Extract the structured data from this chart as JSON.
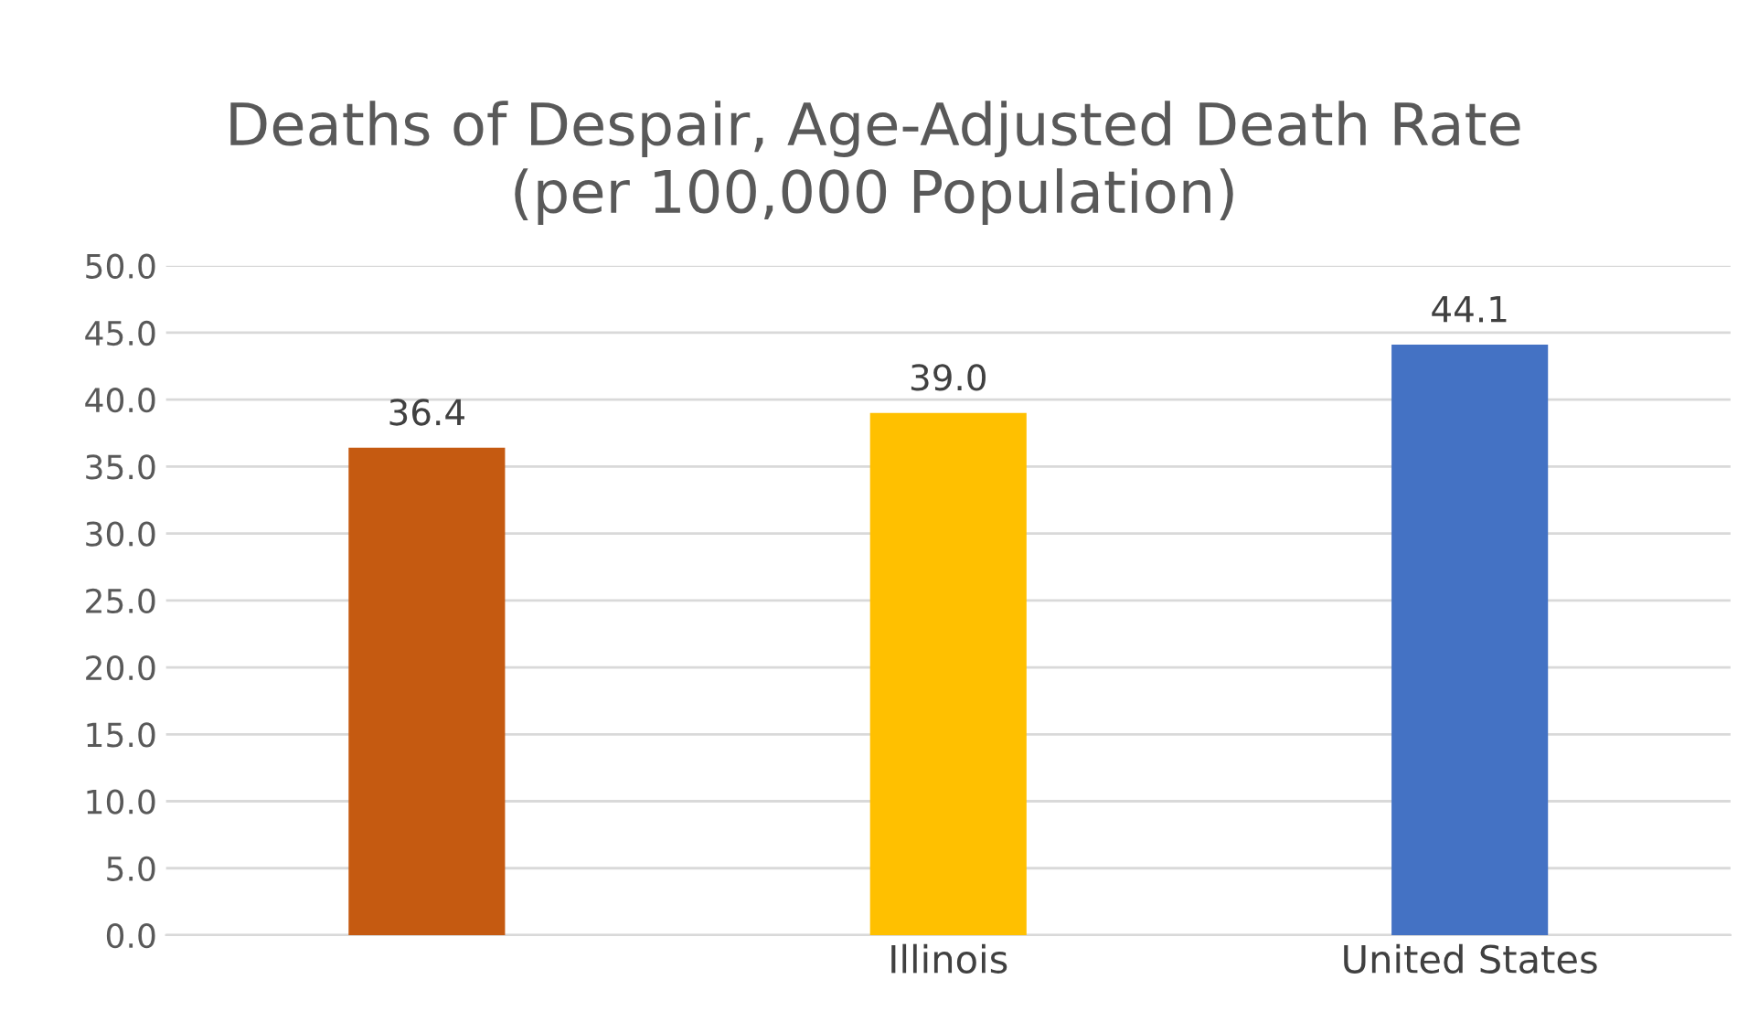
{
  "chart_data": {
    "type": "bar",
    "title": "Deaths of Despair, Age-Adjusted Death Rate\n(per 100,000 Population)",
    "categories": [
      null,
      "Illinois",
      "United States"
    ],
    "values": [
      36.4,
      39.0,
      44.1
    ],
    "colors": [
      "#c55a11",
      "#ffc000",
      "#4472c4"
    ],
    "value_labels": [
      "36.4",
      "39.0",
      "44.1"
    ],
    "ylim": [
      0,
      50
    ],
    "yticks": [
      {
        "value": 0,
        "label": "0.0"
      },
      {
        "value": 5,
        "label": "5.0"
      },
      {
        "value": 10,
        "label": "10.0"
      },
      {
        "value": 15,
        "label": "15.0"
      },
      {
        "value": 20,
        "label": "20.0"
      },
      {
        "value": 25,
        "label": "25.0"
      },
      {
        "value": 30,
        "label": "30.0"
      },
      {
        "value": 35,
        "label": "35.0"
      },
      {
        "value": 40,
        "label": "40.0"
      },
      {
        "value": 45,
        "label": "45.0"
      },
      {
        "value": 50,
        "label": "50.0"
      }
    ],
    "grid": "y",
    "legend": false
  }
}
